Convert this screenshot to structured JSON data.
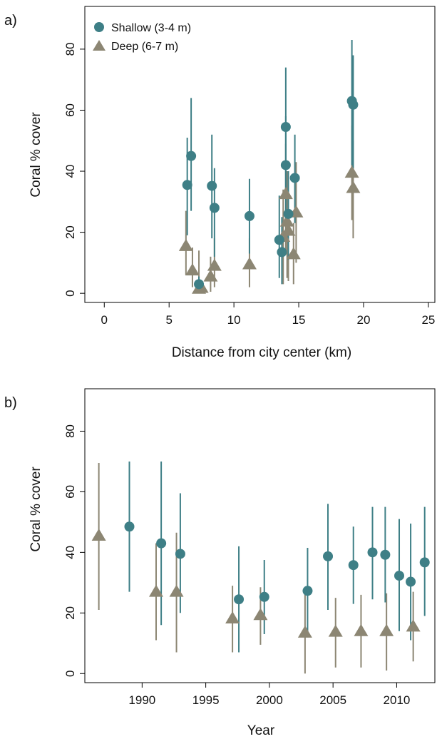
{
  "colors": {
    "shallow": "#3e7f86",
    "deep": "#8c8673",
    "frame": "#000000"
  },
  "chart_data": [
    {
      "type": "scatter",
      "panel_label": "a)",
      "xlabel": "Distance from city center (km)",
      "ylabel": "Coral % cover",
      "xlim": [
        -1.5,
        25.5
      ],
      "ylim": [
        -3,
        94
      ],
      "xticks": [
        0,
        5,
        10,
        15,
        20,
        25
      ],
      "yticks": [
        0,
        20,
        40,
        60,
        80
      ],
      "grid": false,
      "legend_position": "top-left",
      "series": [
        {
          "name": "Shallow (3-4 m)",
          "marker": "circle",
          "points": [
            {
              "x": 6.4,
              "y": 35.5,
              "lo": 19,
              "hi": 51
            },
            {
              "x": 6.7,
              "y": 45,
              "lo": 27,
              "hi": 64
            },
            {
              "x": 7.3,
              "y": 3,
              "lo": 0.5,
              "hi": 5.5
            },
            {
              "x": 8.3,
              "y": 35.2,
              "lo": 18,
              "hi": 52
            },
            {
              "x": 8.5,
              "y": 28,
              "lo": 12,
              "hi": 41
            },
            {
              "x": 11.2,
              "y": 25.3,
              "lo": 13,
              "hi": 37.5
            },
            {
              "x": 13.5,
              "y": 17.5,
              "lo": 5,
              "hi": 32
            },
            {
              "x": 13.7,
              "y": 13.5,
              "lo": 3,
              "hi": 25
            },
            {
              "x": 14.0,
              "y": 54.5,
              "lo": 34,
              "hi": 74
            },
            {
              "x": 14.0,
              "y": 42,
              "lo": 25,
              "hi": 58
            },
            {
              "x": 14.2,
              "y": 26,
              "lo": 11,
              "hi": 40
            },
            {
              "x": 14.7,
              "y": 37.8,
              "lo": 23,
              "hi": 52
            },
            {
              "x": 19.1,
              "y": 63,
              "lo": 42,
              "hi": 83
            },
            {
              "x": 19.2,
              "y": 61.8,
              "lo": 41,
              "hi": 78
            }
          ]
        },
        {
          "name": "Deep (6-7 m)",
          "marker": "triangle",
          "points": [
            {
              "x": 6.3,
              "y": 15.5,
              "lo": 6,
              "hi": 27
            },
            {
              "x": 6.8,
              "y": 7.5,
              "lo": 2,
              "hi": 15
            },
            {
              "x": 7.3,
              "y": 1.5,
              "lo": 0,
              "hi": 14
            },
            {
              "x": 7.5,
              "y": 1.8,
              "lo": 0,
              "hi": 4
            },
            {
              "x": 8.2,
              "y": 5.5,
              "lo": 0.5,
              "hi": 12
            },
            {
              "x": 8.5,
              "y": 9,
              "lo": 2,
              "hi": 18
            },
            {
              "x": 11.2,
              "y": 9.5,
              "lo": 2,
              "hi": 18
            },
            {
              "x": 13.8,
              "y": 18.5,
              "lo": 3,
              "hi": 34
            },
            {
              "x": 14.0,
              "y": 32.5,
              "lo": 13,
              "hi": 49
            },
            {
              "x": 14.1,
              "y": 23.5,
              "lo": 5,
              "hi": 40
            },
            {
              "x": 14.2,
              "y": 20.5,
              "lo": 4,
              "hi": 38
            },
            {
              "x": 14.6,
              "y": 12.8,
              "lo": 3,
              "hi": 23
            },
            {
              "x": 14.8,
              "y": 26.5,
              "lo": 10,
              "hi": 43
            },
            {
              "x": 19.1,
              "y": 39.5,
              "lo": 24,
              "hi": 55
            },
            {
              "x": 19.2,
              "y": 34.5,
              "lo": 18,
              "hi": 50
            }
          ]
        }
      ]
    },
    {
      "type": "scatter",
      "panel_label": "b)",
      "xlabel": "Year",
      "ylabel": "Coral % cover",
      "xlim": [
        1985.5,
        2013
      ],
      "ylim": [
        -3,
        94
      ],
      "xticks": [
        1990,
        1995,
        2000,
        2005,
        2010
      ],
      "yticks": [
        0,
        20,
        40,
        60,
        80
      ],
      "grid": false,
      "series": [
        {
          "name": "Shallow (3-4 m)",
          "marker": "circle",
          "points": [
            {
              "x": 1989.0,
              "y": 48.5,
              "lo": 27,
              "hi": 70
            },
            {
              "x": 1991.5,
              "y": 43,
              "lo": 16,
              "hi": 70
            },
            {
              "x": 1993.0,
              "y": 39.5,
              "lo": 20,
              "hi": 59.5
            },
            {
              "x": 1997.6,
              "y": 24.5,
              "lo": 7,
              "hi": 42
            },
            {
              "x": 1999.6,
              "y": 25.3,
              "lo": 13,
              "hi": 37.5
            },
            {
              "x": 2003.0,
              "y": 27.3,
              "lo": 13,
              "hi": 41.5
            },
            {
              "x": 2004.6,
              "y": 38.7,
              "lo": 21,
              "hi": 56
            },
            {
              "x": 2006.6,
              "y": 35.8,
              "lo": 23,
              "hi": 48.5
            },
            {
              "x": 2008.1,
              "y": 40,
              "lo": 24.5,
              "hi": 55
            },
            {
              "x": 2009.1,
              "y": 39.2,
              "lo": 23.5,
              "hi": 55
            },
            {
              "x": 2010.2,
              "y": 32.3,
              "lo": 14,
              "hi": 51
            },
            {
              "x": 2011.1,
              "y": 30.3,
              "lo": 11,
              "hi": 49.5
            },
            {
              "x": 2012.2,
              "y": 36.7,
              "lo": 19,
              "hi": 55
            }
          ]
        },
        {
          "name": "Deep (6-7 m)",
          "marker": "triangle",
          "points": [
            {
              "x": 1986.6,
              "y": 45.5,
              "lo": 21,
              "hi": 69.5
            },
            {
              "x": 1991.1,
              "y": 27,
              "lo": 11,
              "hi": 43
            },
            {
              "x": 1992.7,
              "y": 27,
              "lo": 7,
              "hi": 46.5
            },
            {
              "x": 1997.1,
              "y": 18.2,
              "lo": 7,
              "hi": 29
            },
            {
              "x": 1999.3,
              "y": 19.3,
              "lo": 9.5,
              "hi": 28.5
            },
            {
              "x": 2002.8,
              "y": 13.5,
              "lo": 0,
              "hi": 27
            },
            {
              "x": 2005.2,
              "y": 13.8,
              "lo": 2,
              "hi": 25
            },
            {
              "x": 2007.2,
              "y": 14,
              "lo": 2,
              "hi": 26
            },
            {
              "x": 2009.2,
              "y": 14,
              "lo": 1,
              "hi": 26.5
            },
            {
              "x": 2011.3,
              "y": 15.5,
              "lo": 4,
              "hi": 27
            }
          ]
        }
      ]
    }
  ]
}
